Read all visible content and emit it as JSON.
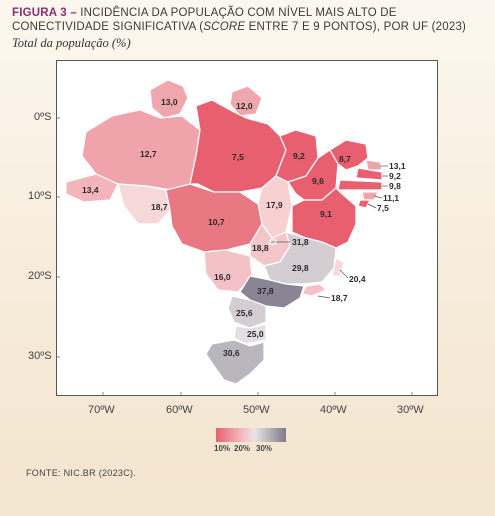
{
  "header": {
    "figure_label": "FIGURA 3 –",
    "title_line1": "INCIDÊNCIA DA POPULAÇÃO COM NÍVEL MAIS ALTO DE",
    "title_line2_a": "CONECTIVIDADE SIGNIFICATIVA (",
    "title_line2_score": "SCORE",
    "title_line2_b": " ENTRE 7 E 9 PONTOS), POR UF (2023)",
    "subtitle": "Total da população (%)"
  },
  "axes": {
    "lat_labels": [
      "0ºS",
      "10ºS",
      "20ºS",
      "30ºS"
    ],
    "lon_labels": [
      "70ºW",
      "60ºW",
      "50ºW",
      "40ºW",
      "30ºW"
    ]
  },
  "legend": {
    "tick_labels": [
      "10%",
      "20%",
      "30%"
    ],
    "colors": [
      "#e8606f",
      "#f3c1c6",
      "#e9e3e3",
      "#b9b6bd",
      "#7f7b88"
    ]
  },
  "regions": [
    {
      "value": "13,0"
    },
    {
      "value": "12,0"
    },
    {
      "value": "12,7"
    },
    {
      "value": "7,5"
    },
    {
      "value": "9,2"
    },
    {
      "value": "8,7"
    },
    {
      "value": "13,4"
    },
    {
      "value": "9,6"
    },
    {
      "value": "18,7"
    },
    {
      "value": "17,9"
    },
    {
      "value": "10,7"
    },
    {
      "value": "9,1"
    },
    {
      "value": "18,8"
    },
    {
      "value": "29,8"
    },
    {
      "value": "16,0"
    },
    {
      "value": "37,8"
    },
    {
      "value": "25,6"
    },
    {
      "value": "25,0"
    },
    {
      "value": "30,6"
    }
  ],
  "outside_labels": [
    {
      "value": "13,1"
    },
    {
      "value": "9,2"
    },
    {
      "value": "9,8"
    },
    {
      "value": "11,1"
    },
    {
      "value": "7,5"
    },
    {
      "value": "31,8"
    },
    {
      "value": "20,4"
    },
    {
      "value": "18,7"
    }
  ],
  "source": "FONTE: NIC.BR (2023C)."
}
